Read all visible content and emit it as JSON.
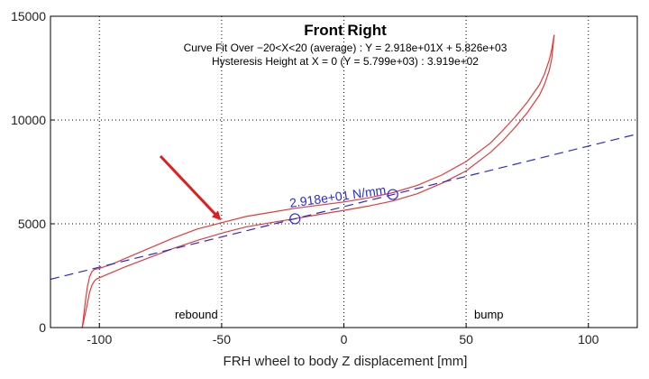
{
  "chart_data": {
    "type": "line",
    "title": "Front Right",
    "subtitle_lines": [
      "Curve Fit Over −20<X<20 (average) : Y = 2.918e+01X + 5.826e+03",
      "Hysteresis Height at X = 0 (Y = 5.799e+03) : 3.919e+02"
    ],
    "xlabel": "FRH wheel to body Z displacement [mm]",
    "ylabel": "",
    "xlim": [
      -120,
      120
    ],
    "ylim": [
      0,
      15000
    ],
    "xticks": [
      -100,
      -50,
      0,
      50,
      100
    ],
    "yticks": [
      0,
      5000,
      10000,
      15000
    ],
    "grid": true,
    "grid_style": "dotted",
    "annotations": {
      "rate_label": "2.918e+01 N/mm",
      "rebound_label": "rebound",
      "bump_label": "bump",
      "fit_markers_x": [
        -20,
        20
      ],
      "arrow_tip": {
        "x": -50,
        "y": 5100
      }
    },
    "series": [
      {
        "kind": "hysteresis_upper",
        "color": "#e23b3b",
        "x": [
          -107,
          -106,
          -105,
          -104,
          -103,
          -102,
          -100,
          -95,
          -90,
          -80,
          -70,
          -60,
          -50,
          -40,
          -30,
          -20,
          -10,
          0,
          10,
          20,
          30,
          40,
          50,
          60,
          65,
          70,
          75,
          80,
          82,
          84,
          85,
          86
        ],
        "y": [
          0,
          1000,
          1900,
          2450,
          2700,
          2800,
          2850,
          3050,
          3300,
          3800,
          4300,
          4750,
          5050,
          5350,
          5550,
          5750,
          5900,
          6050,
          6250,
          6500,
          6850,
          7350,
          8000,
          8900,
          9500,
          10150,
          10850,
          11700,
          12200,
          12900,
          13400,
          14100
        ]
      },
      {
        "kind": "hysteresis_lower",
        "color": "#e23b3b",
        "x": [
          -107,
          -105,
          -104,
          -103,
          -102,
          -101,
          -100,
          -95,
          -90,
          -80,
          -70,
          -60,
          -50,
          -40,
          -30,
          -20,
          -10,
          0,
          10,
          20,
          30,
          40,
          50,
          60,
          65,
          70,
          75,
          80,
          82,
          84,
          85,
          86
        ],
        "y": [
          0,
          1100,
          1700,
          2050,
          2250,
          2350,
          2400,
          2650,
          2900,
          3350,
          3800,
          4200,
          4550,
          4850,
          5050,
          5250,
          5450,
          5650,
          5850,
          6100,
          6450,
          6950,
          7550,
          8450,
          9000,
          9650,
          10350,
          11200,
          11700,
          12400,
          12950,
          14100
        ]
      },
      {
        "kind": "linear_fit",
        "color": "#2a2ad8",
        "dashed": true,
        "x": [
          -120,
          120
        ],
        "y": [
          2324,
          9328
        ]
      }
    ]
  }
}
